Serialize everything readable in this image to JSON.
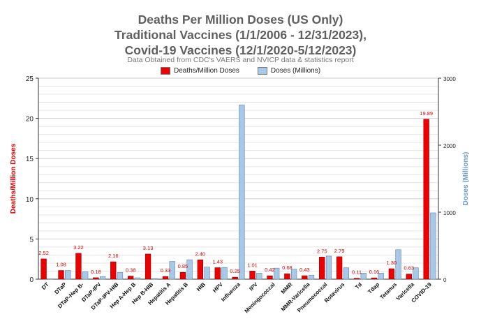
{
  "chart_data": {
    "type": "bar",
    "title": [
      "Deaths Per Million Doses (US Only)",
      "Traditional Vaccines (1/1/2006 - 12/31/2023),",
      "Covid-19 Vaccines (12/1/2020-5/12/2023)"
    ],
    "subtitle": "Data Obtained from CDC's VAERS and NVICP data & statistics report",
    "categories": [
      "DT",
      "DTaP",
      "DTaP-Hep B-",
      "DTaP-IPV",
      "DTaP-IPV-HIB",
      "Hep A-Hep B",
      "Hep B-HIB",
      "Hepatitis A",
      "Hepatitis B",
      "HIB",
      "HPV",
      "Influenza",
      "IPV",
      "Meningococcal",
      "MMR",
      "MMR-Varicella",
      "Pneumococcal",
      "Rotavirus",
      "Td",
      "Tdap",
      "Tetanus",
      "Varicella",
      "COVID-19"
    ],
    "series": [
      {
        "name": "Deaths/Million Doses",
        "axis": "left",
        "color": "#ee0000",
        "values": [
          2.52,
          1.08,
          3.22,
          0.18,
          2.16,
          0.38,
          3.13,
          0.33,
          0.85,
          2.4,
          1.43,
          0.25,
          1.01,
          0.42,
          0.68,
          0.43,
          2.75,
          2.79,
          0.11,
          0.16,
          1.3,
          0.63,
          19.89
        ],
        "labels": [
          "2.52",
          "1.08",
          "3.22",
          "0.18",
          "2.16",
          "0.38",
          "3.13",
          "0.33",
          "0.85",
          "2.40",
          "1.43",
          "0.25",
          "1.01",
          "0.42",
          "0.68",
          "0.43",
          "2.75",
          "2.79",
          "0.11",
          "0.16",
          "1.30",
          "0.63",
          "19.89"
        ]
      },
      {
        "name": "Doses (Millions)",
        "axis": "right",
        "color": "#a8c8e8",
        "values": [
          5,
          130,
          110,
          40,
          100,
          20,
          10,
          265,
          290,
          180,
          175,
          2600,
          90,
          165,
          150,
          60,
          345,
          170,
          90,
          90,
          440,
          170,
          990
        ]
      }
    ],
    "ylabel": "Deaths/Million Doses",
    "y2label": "Doses (Millions)",
    "ylim": [
      0,
      25
    ],
    "y2lim": [
      0,
      3000
    ],
    "yticks": [
      0,
      5,
      10,
      15,
      20,
      25
    ],
    "y2ticks": [
      0,
      1000,
      2000,
      3000
    ],
    "grid": true,
    "legend": "top-center"
  }
}
